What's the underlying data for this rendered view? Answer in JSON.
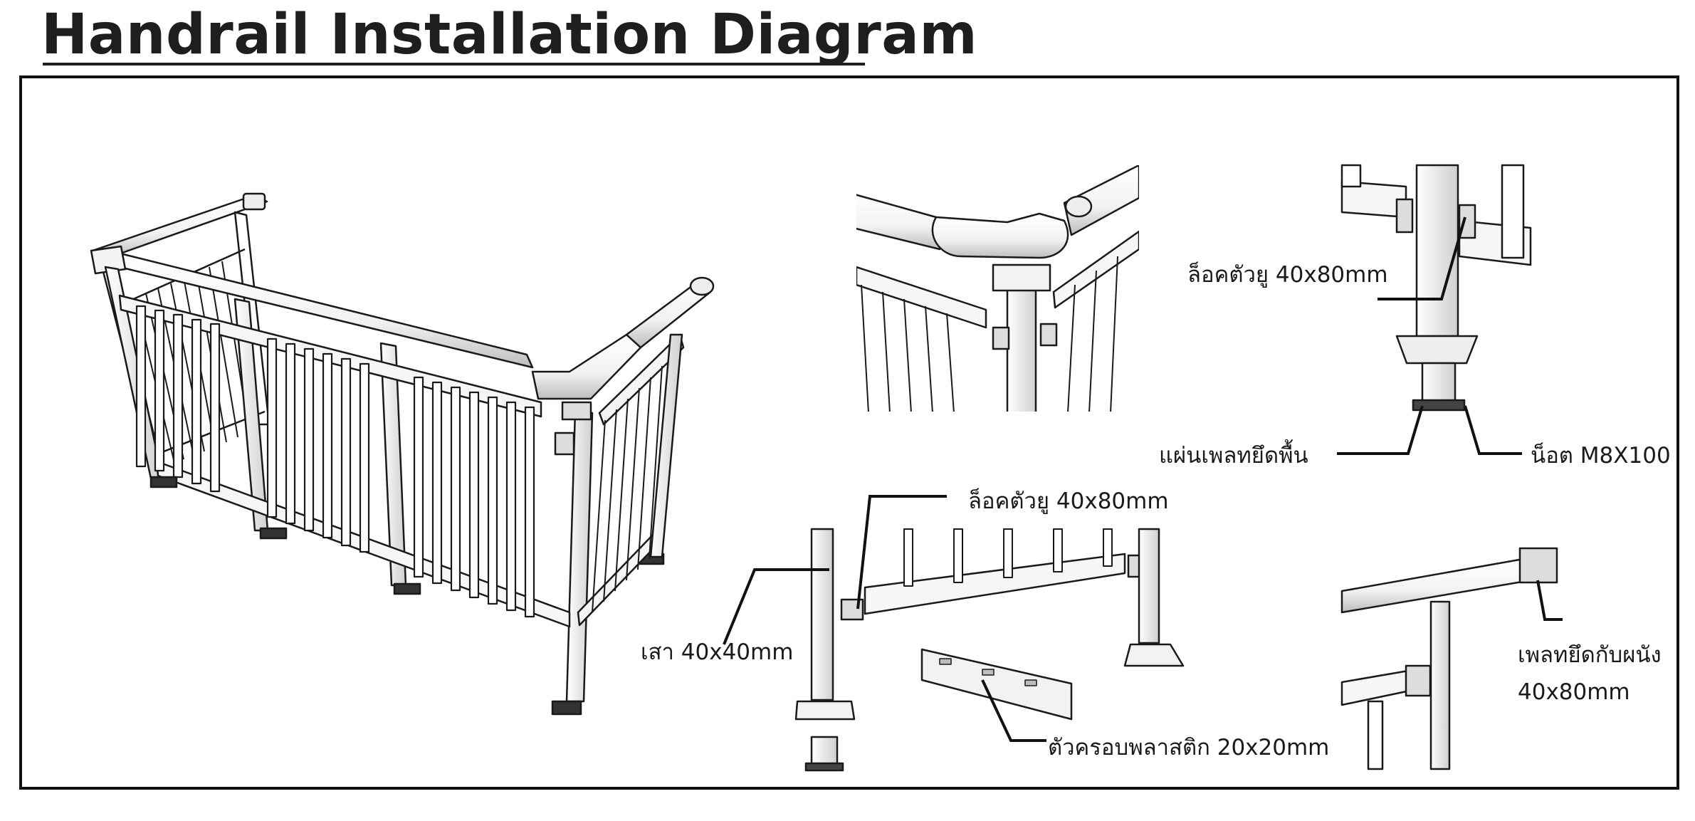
{
  "title": "Handrail Installation Diagram",
  "labels": {
    "u_lock_top": "ล็อคตัวยู 40x80mm",
    "floor_plate": "แผ่นเพลทยึดพื้น",
    "bolt": "น็อต M8X100",
    "u_lock_mid": "ล็อคตัวยู 40x80mm",
    "post": "เสา 40x40mm",
    "plastic_cap": "ตัวครอบพลาสติก 20x20mm",
    "wall_plate": "เพลทยึดกับผนัง",
    "wall_plate_size": "40x80mm"
  }
}
